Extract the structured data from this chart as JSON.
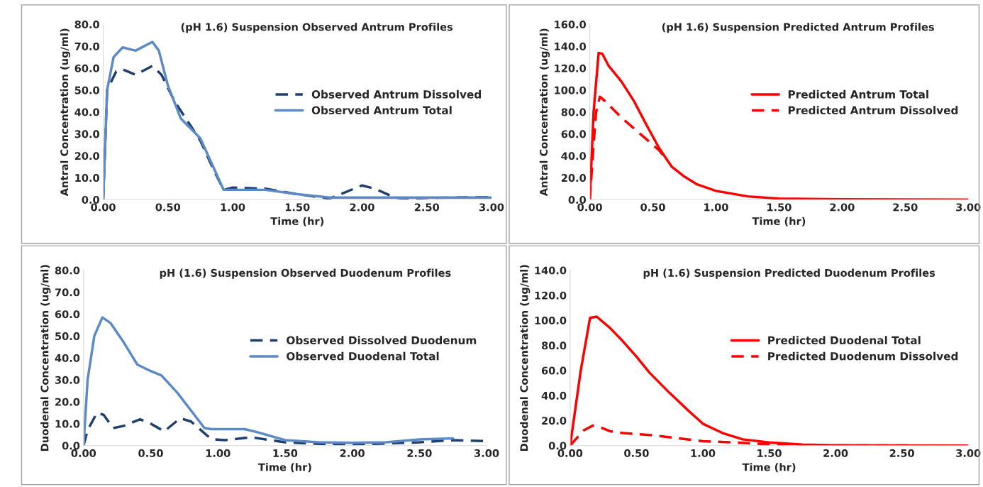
{
  "chart_data": [
    {
      "type": "line",
      "title": "(pH 1.6) Suspension Observed Antrum Profiles",
      "xlabel": "Time (hr)",
      "ylabel": "Antral Concentration (ug/ml)",
      "xlim": [
        0,
        3
      ],
      "ylim": [
        0,
        80
      ],
      "xticks": [
        {
          "value": 0,
          "label": "0.00"
        },
        {
          "value": 0.5,
          "label": "0.50"
        },
        {
          "value": 1,
          "label": "1.00"
        },
        {
          "value": 1.5,
          "label": "1.50"
        },
        {
          "value": 2,
          "label": "2.00"
        },
        {
          "value": 2.5,
          "label": "2.50"
        },
        {
          "value": 3,
          "label": "3.00"
        }
      ],
      "yticks": [
        {
          "value": 0,
          "label": "0.0"
        },
        {
          "value": 10,
          "label": "10.0"
        },
        {
          "value": 20,
          "label": "20.0"
        },
        {
          "value": 30,
          "label": "30.0"
        },
        {
          "value": 40,
          "label": "40.0"
        },
        {
          "value": 50,
          "label": "50.0"
        },
        {
          "value": 60,
          "label": "60.0"
        },
        {
          "value": 70,
          "label": "70.0"
        },
        {
          "value": 80,
          "label": "80.0"
        }
      ],
      "grid": false,
      "legend": "right",
      "series": [
        {
          "name": "Observed Antrum Dissolved",
          "color": "#1f3f6e",
          "line_style": "dashed",
          "x": [
            0,
            0.03,
            0.1,
            0.15,
            0.25,
            0.38,
            0.45,
            0.55,
            0.65,
            0.75,
            0.85,
            0.93,
            1.0,
            1.25,
            1.5,
            1.75,
            2.0,
            2.1,
            2.25,
            2.35,
            2.5,
            3.0
          ],
          "values": [
            0,
            50,
            58.5,
            59.5,
            57,
            61,
            57,
            45,
            36,
            27,
            14,
            4.5,
            5.5,
            5,
            2.5,
            0.5,
            6.5,
            5,
            1,
            0.3,
            0.8,
            1.2
          ]
        },
        {
          "name": "Observed Antrum Total",
          "color": "#5b8ac6",
          "line_style": "solid",
          "x": [
            0,
            0.03,
            0.08,
            0.15,
            0.25,
            0.38,
            0.43,
            0.5,
            0.6,
            0.75,
            0.85,
            0.93,
            1.0,
            1.25,
            1.5,
            1.75,
            2.0,
            2.5,
            3.0
          ],
          "values": [
            0,
            50,
            65,
            69.5,
            68,
            72,
            68,
            52,
            37,
            28,
            15,
            4.5,
            4.5,
            4.5,
            2.5,
            1,
            1,
            1,
            1
          ]
        }
      ]
    },
    {
      "type": "line",
      "title": "(pH 1.6) Suspension Predicted Antrum Profiles",
      "xlabel": "Time (hr)",
      "ylabel": "Antral Concentration (ug/ml)",
      "xlim": [
        0,
        3
      ],
      "ylim": [
        0,
        160
      ],
      "xticks": [
        {
          "value": 0,
          "label": "0.00"
        },
        {
          "value": 0.5,
          "label": "0.50"
        },
        {
          "value": 1,
          "label": "1.00"
        },
        {
          "value": 1.5,
          "label": "1.50"
        },
        {
          "value": 2,
          "label": "2.00"
        },
        {
          "value": 2.5,
          "label": "2.50"
        },
        {
          "value": 3,
          "label": "3.00"
        }
      ],
      "yticks": [
        {
          "value": 0,
          "label": "0.0"
        },
        {
          "value": 20,
          "label": "20.0"
        },
        {
          "value": 40,
          "label": "40.0"
        },
        {
          "value": 60,
          "label": "60.0"
        },
        {
          "value": 80,
          "label": "80.0"
        },
        {
          "value": 100,
          "label": "100.0"
        },
        {
          "value": 120,
          "label": "120.0"
        },
        {
          "value": 140,
          "label": "140.0"
        },
        {
          "value": 160,
          "label": "160.0"
        }
      ],
      "grid": false,
      "legend": "right",
      "series": [
        {
          "name": "Predicted Antrum Total",
          "color": "#ff0000",
          "line_style": "solid",
          "x": [
            0,
            0.03,
            0.07,
            0.1,
            0.15,
            0.25,
            0.35,
            0.45,
            0.55,
            0.65,
            0.75,
            0.85,
            1.0,
            1.25,
            1.5,
            2.0,
            3.0
          ],
          "values": [
            0,
            80,
            134,
            133,
            122,
            108,
            90,
            68,
            47,
            30,
            21,
            14,
            8,
            3,
            1,
            0.3,
            0
          ]
        },
        {
          "name": "Predicted Antrum Dissolved",
          "color": "#ff0000",
          "line_style": "dashed",
          "x": [
            0,
            0.03,
            0.05,
            0.08,
            0.12,
            0.25,
            0.4,
            0.55,
            0.62
          ],
          "values": [
            0,
            50,
            80,
            94,
            90,
            75,
            60,
            45,
            35
          ]
        }
      ]
    },
    {
      "type": "line",
      "title": "pH (1.6) Suspension Observed Duodenum Profiles",
      "xlabel": "Time (hr)",
      "ylabel": "Duodenal Concentration (ug/ml)",
      "xlim": [
        0,
        3
      ],
      "ylim": [
        0,
        80
      ],
      "xticks": [
        {
          "value": 0,
          "label": "0.00"
        },
        {
          "value": 0.5,
          "label": "0.50"
        },
        {
          "value": 1,
          "label": "1.00"
        },
        {
          "value": 1.5,
          "label": "1.50"
        },
        {
          "value": 2,
          "label": "2.00"
        },
        {
          "value": 2.5,
          "label": "2.50"
        },
        {
          "value": 3,
          "label": "3.00"
        }
      ],
      "yticks": [
        {
          "value": 0,
          "label": "0.0"
        },
        {
          "value": 10,
          "label": "10.0"
        },
        {
          "value": 20,
          "label": "20.0"
        },
        {
          "value": 30,
          "label": "30.0"
        },
        {
          "value": 40,
          "label": "40.0"
        },
        {
          "value": 50,
          "label": "50.0"
        },
        {
          "value": 60,
          "label": "60.0"
        },
        {
          "value": 70,
          "label": "70.0"
        },
        {
          "value": 80,
          "label": "80.0"
        }
      ],
      "grid": false,
      "legend": "right",
      "series": [
        {
          "name": "Observed Dissolved Duodenum",
          "color": "#1f3f6e",
          "line_style": "dashed",
          "x": [
            0,
            0.03,
            0.1,
            0.15,
            0.22,
            0.3,
            0.42,
            0.5,
            0.6,
            0.72,
            0.8,
            0.95,
            1.05,
            1.25,
            1.5,
            1.75,
            2.0,
            2.25,
            2.5,
            2.75,
            3.0
          ],
          "values": [
            0,
            7,
            15,
            14,
            8,
            9,
            12,
            10,
            6.5,
            12.5,
            11,
            3,
            2.5,
            3.8,
            1.5,
            0.8,
            0.5,
            1,
            1.5,
            2.5,
            2
          ]
        },
        {
          "name": "Observed Duodenal Total",
          "color": "#5b8ac6",
          "line_style": "solid",
          "x": [
            0,
            0.03,
            0.08,
            0.14,
            0.2,
            0.3,
            0.4,
            0.5,
            0.58,
            0.7,
            0.8,
            0.9,
            0.95,
            1.2,
            1.3,
            1.5,
            1.75,
            2.0,
            2.25,
            2.5,
            2.75
          ],
          "values": [
            0,
            30,
            50,
            58.5,
            56,
            47,
            37,
            34,
            32,
            24,
            16,
            8,
            7.5,
            7.5,
            6,
            2.5,
            1.5,
            1.3,
            1.5,
            2.8,
            3.3
          ]
        }
      ]
    },
    {
      "type": "line",
      "title": "pH (1.6) Suspension Predicted Duodenum Profiles",
      "xlabel": "Time (hr)",
      "ylabel": "Duodenal Concentration (ug/ml)",
      "xlim": [
        0,
        3
      ],
      "ylim": [
        0,
        140
      ],
      "xticks": [
        {
          "value": 0,
          "label": "0.00"
        },
        {
          "value": 0.5,
          "label": "0.50"
        },
        {
          "value": 1,
          "label": "1.00"
        },
        {
          "value": 1.5,
          "label": "1.50"
        },
        {
          "value": 2,
          "label": "2.00"
        },
        {
          "value": 2.5,
          "label": "2.50"
        },
        {
          "value": 3,
          "label": "3.00"
        }
      ],
      "yticks": [
        {
          "value": 0,
          "label": "0.0"
        },
        {
          "value": 20,
          "label": "20.0"
        },
        {
          "value": 40,
          "label": "40.0"
        },
        {
          "value": 60,
          "label": "60.0"
        },
        {
          "value": 80,
          "label": "80.0"
        },
        {
          "value": 100,
          "label": "100.0"
        },
        {
          "value": 120,
          "label": "120.0"
        },
        {
          "value": 140,
          "label": "140.0"
        }
      ],
      "grid": false,
      "legend": "right",
      "series": [
        {
          "name": "Predicted Duodenal Total",
          "color": "#ff0000",
          "line_style": "solid",
          "x": [
            0,
            0.08,
            0.15,
            0.2,
            0.3,
            0.4,
            0.5,
            0.6,
            0.75,
            0.9,
            1.0,
            1.15,
            1.3,
            1.5,
            1.75,
            2.0,
            2.5,
            3.0
          ],
          "values": [
            0,
            60,
            102,
            103,
            94,
            83,
            71,
            58,
            42,
            27,
            17.5,
            10,
            5,
            2.5,
            0.8,
            0.3,
            0.1,
            0
          ]
        },
        {
          "name": "Predicted Duodenum Dissolved",
          "color": "#ff0000",
          "line_style": "dashed",
          "x": [
            0,
            0.1,
            0.17,
            0.22,
            0.3,
            0.4,
            0.6,
            0.8,
            1.0,
            1.25,
            1.5,
            1.75,
            2.0,
            3.0
          ],
          "values": [
            0,
            12,
            16,
            15,
            11.5,
            10,
            8.5,
            6,
            3.5,
            2.5,
            1,
            0.3,
            0.1,
            0
          ]
        }
      ]
    }
  ]
}
